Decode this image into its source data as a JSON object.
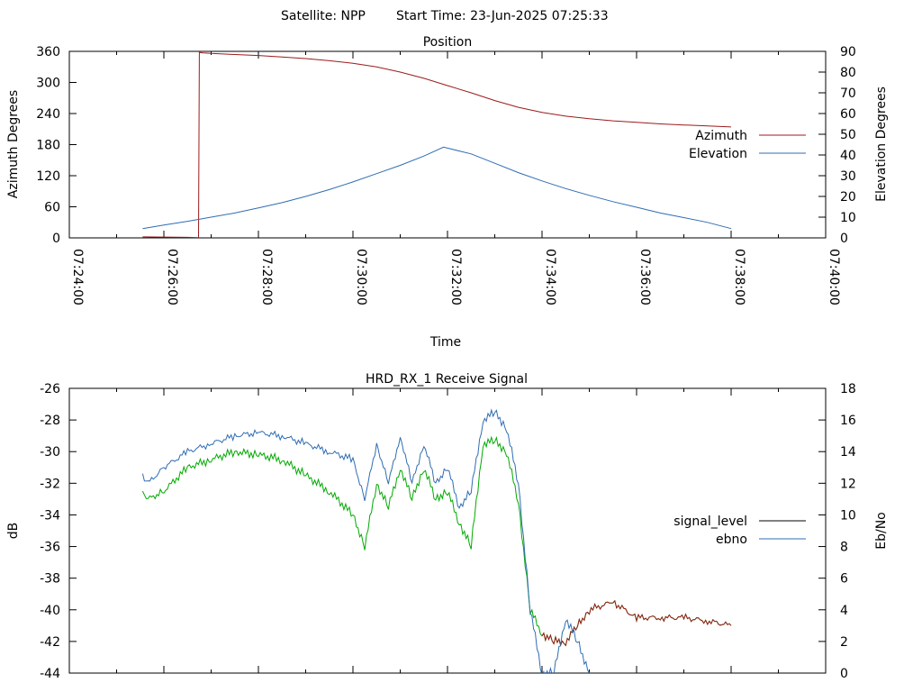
{
  "header": {
    "satellite": "Satellite: NPP",
    "start_time": "Start Time: 23-Jun-2025 07:25:33"
  },
  "chart_data": [
    {
      "type": "line",
      "title": "Position",
      "xlabel": "Time",
      "ylabel": "Azimuth Degrees",
      "y2label": "Elevation Degrees",
      "xlim": [
        "07:24:00",
        "07:40:00"
      ],
      "ylim": [
        0,
        360
      ],
      "y2lim": [
        0,
        90
      ],
      "x_ticks": [
        "07:24:00",
        "07:26:00",
        "07:28:00",
        "07:30:00",
        "07:32:00",
        "07:34:00",
        "07:36:00",
        "07:38:00",
        "07:40:00"
      ],
      "y_ticks": [
        "0",
        "60",
        "120",
        "180",
        "240",
        "300",
        "360"
      ],
      "y2_ticks": [
        "0",
        "10",
        "20",
        "30",
        "40",
        "50",
        "60",
        "70",
        "80",
        "90"
      ],
      "legend_position": "right",
      "grid": false,
      "series": [
        {
          "name": "Azimuth",
          "color": "#9b1b1b",
          "axis": "left",
          "x": [
            "07:25:33",
            "07:26:00",
            "07:26:30",
            "07:26:44",
            "07:26:45",
            "07:26:50",
            "07:27:00",
            "07:27:30",
            "07:28:00",
            "07:28:30",
            "07:29:00",
            "07:29:30",
            "07:30:00",
            "07:30:30",
            "07:31:00",
            "07:31:30",
            "07:32:00",
            "07:32:30",
            "07:33:00",
            "07:33:30",
            "07:34:00",
            "07:34:30",
            "07:35:00",
            "07:35:30",
            "07:36:00",
            "07:36:30",
            "07:37:00",
            "07:37:30",
            "07:38:00"
          ],
          "values": [
            2,
            1.5,
            1,
            0.5,
            358,
            357,
            356,
            354,
            352,
            349,
            346,
            342,
            337,
            330,
            320,
            308,
            294,
            280,
            265,
            252,
            242,
            235,
            230,
            226,
            223,
            220,
            218,
            216,
            214
          ]
        },
        {
          "name": "Elevation",
          "color": "#2f6db3",
          "axis": "right",
          "x": [
            "07:25:33",
            "07:26:00",
            "07:26:30",
            "07:27:00",
            "07:27:30",
            "07:28:00",
            "07:28:30",
            "07:29:00",
            "07:29:30",
            "07:30:00",
            "07:30:30",
            "07:31:00",
            "07:31:30",
            "07:31:55",
            "07:32:30",
            "07:33:00",
            "07:33:30",
            "07:34:00",
            "07:34:30",
            "07:35:00",
            "07:35:30",
            "07:36:00",
            "07:36:30",
            "07:37:00",
            "07:37:30",
            "07:38:00"
          ],
          "values": [
            4.5,
            6.2,
            8,
            10,
            12,
            14.5,
            17,
            20,
            23.3,
            27,
            31,
            35,
            39.5,
            43.8,
            40.5,
            36,
            31.5,
            27.5,
            23.8,
            20.5,
            17.5,
            14.8,
            12,
            9.8,
            7.5,
            4.5
          ]
        }
      ]
    },
    {
      "type": "line",
      "title": "HRD_RX_1 Receive Signal",
      "xlabel": "",
      "ylabel": "dB",
      "y2label": "Eb/No",
      "xlim": [
        "07:24:00",
        "07:40:00"
      ],
      "ylim": [
        -44,
        -26
      ],
      "y2lim": [
        0,
        18
      ],
      "y_ticks": [
        "-26",
        "-28",
        "-30",
        "-32",
        "-34",
        "-36",
        "-38",
        "-40",
        "-42",
        "-44"
      ],
      "y2_ticks": [
        "18",
        "16",
        "14",
        "12",
        "10",
        "8",
        "6",
        "4",
        "2",
        "0"
      ],
      "legend_position": "right",
      "grid": false,
      "series": [
        {
          "name": "signal_level",
          "color": "#00aa00",
          "line_color_tail": "#9b1b1b",
          "axis": "left",
          "x": [
            "07:25:33",
            "07:25:40",
            "07:26:00",
            "07:26:30",
            "07:27:00",
            "07:27:30",
            "07:28:00",
            "07:28:30",
            "07:29:00",
            "07:29:30",
            "07:30:00",
            "07:30:15",
            "07:30:30",
            "07:30:45",
            "07:31:00",
            "07:31:15",
            "07:31:30",
            "07:31:45",
            "07:32:00",
            "07:32:15",
            "07:32:30",
            "07:32:45",
            "07:33:00",
            "07:33:15",
            "07:33:30",
            "07:33:45",
            "07:34:00",
            "07:34:15",
            "07:34:30",
            "07:34:45",
            "07:35:00",
            "07:35:30",
            "07:36:00",
            "07:36:30",
            "07:37:00",
            "07:37:30",
            "07:38:00"
          ],
          "values": [
            -32.5,
            -33,
            -32.5,
            -31,
            -30.5,
            -30,
            -30.2,
            -30.5,
            -31.5,
            -32.5,
            -34,
            -36,
            -32,
            -33.5,
            -31,
            -33,
            -31,
            -33,
            -32.5,
            -34.5,
            -36,
            -29.5,
            -29.3,
            -30,
            -33.2,
            -40,
            -41.5,
            -42,
            -42,
            -41,
            -40,
            -39.5,
            -40.5,
            -40.5,
            -40.5,
            -40.7,
            -41
          ]
        },
        {
          "name": "ebno",
          "color": "#2f6db3",
          "axis": "right",
          "x": [
            "07:25:33",
            "07:25:40",
            "07:26:00",
            "07:26:30",
            "07:27:00",
            "07:27:30",
            "07:28:00",
            "07:28:30",
            "07:29:00",
            "07:29:30",
            "07:30:00",
            "07:30:15",
            "07:30:30",
            "07:30:45",
            "07:31:00",
            "07:31:15",
            "07:31:30",
            "07:31:45",
            "07:32:00",
            "07:32:15",
            "07:32:30",
            "07:32:45",
            "07:33:00",
            "07:33:15",
            "07:33:30",
            "07:33:45",
            "07:34:00",
            "07:34:15",
            "07:34:30",
            "07:34:45",
            "07:35:00"
          ],
          "values": [
            12.5,
            12,
            13,
            14,
            14.5,
            15,
            15.2,
            15,
            14.5,
            14,
            13.5,
            11,
            14.5,
            12,
            15,
            12,
            14.5,
            12,
            13,
            10.5,
            11.5,
            16,
            16.5,
            15.5,
            12,
            4,
            0,
            0,
            3.5,
            2,
            0
          ]
        }
      ]
    }
  ]
}
